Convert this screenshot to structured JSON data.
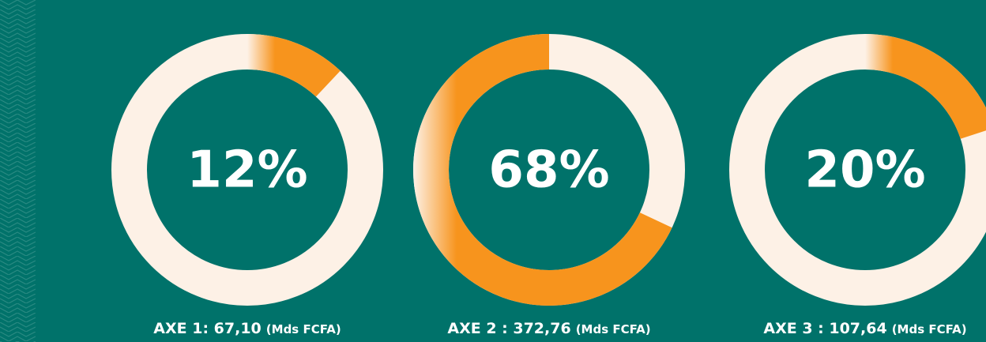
{
  "chart_data": [
    {
      "type": "donut",
      "values": [
        12
      ],
      "value_labels": [
        "12%"
      ],
      "ylim": [
        0,
        100
      ],
      "direction": "clockwise",
      "color": "#f7941d",
      "track_color": "#fdf1e6",
      "title": "AXE 1: 67,10",
      "subtitle": "(Mds FCFA)"
    },
    {
      "type": "donut",
      "values": [
        68
      ],
      "value_labels": [
        "68%"
      ],
      "ylim": [
        0,
        100
      ],
      "direction": "counterclockwise",
      "color": "#f7941d",
      "track_color": "#fdf1e6",
      "title": "AXE 2 : 372,76",
      "subtitle": "(Mds FCFA)"
    },
    {
      "type": "donut",
      "values": [
        20
      ],
      "value_labels": [
        "20%"
      ],
      "ylim": [
        0,
        100
      ],
      "direction": "clockwise",
      "color": "#f7941d",
      "track_color": "#fdf1e6",
      "title": "AXE 3 : 107,64",
      "subtitle": "(Mds FCFA)"
    }
  ]
}
